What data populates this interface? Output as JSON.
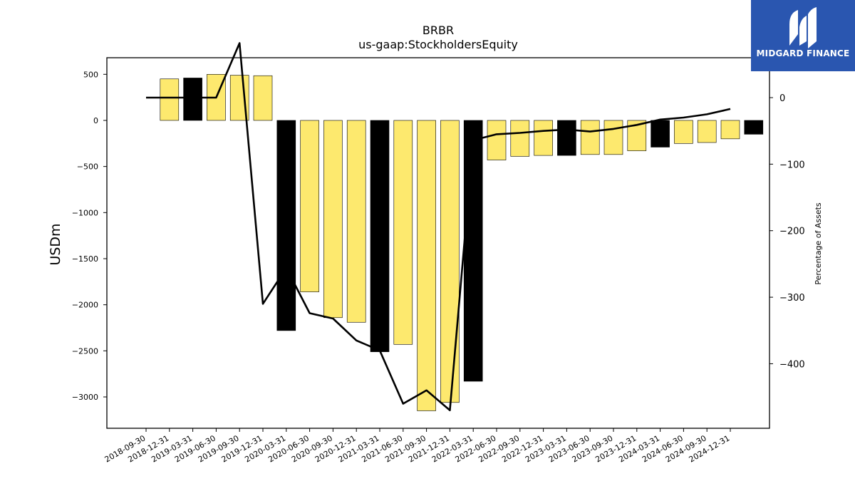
{
  "logo": {
    "text": "MIDGARD FINANCE"
  },
  "chart_data": {
    "type": "bar",
    "title": "BRBR",
    "subtitle": "us-gaap:StockholdersEquity",
    "ylabel": "USDm",
    "y2label": "Percentage of Assets",
    "ylim": [
      -3340,
      680
    ],
    "y2lim": [
      -497,
      60
    ],
    "yticks": [
      500,
      0,
      -500,
      -1000,
      -1500,
      -2000,
      -2500,
      -3000
    ],
    "y2ticks": [
      0,
      -100,
      -200,
      -300,
      -400
    ],
    "categories": [
      "2018-09-30",
      "2018-12-31",
      "2019-03-31",
      "2019-06-30",
      "2019-09-30",
      "2019-12-31",
      "2020-03-31",
      "2020-06-30",
      "2020-09-30",
      "2020-12-31",
      "2021-03-31",
      "2021-06-30",
      "2021-09-30",
      "2021-12-31",
      "2022-03-31",
      "2022-06-30",
      "2022-09-30",
      "2022-12-31",
      "2023-03-31",
      "2023-06-30",
      "2023-09-30",
      "2023-12-31",
      "2024-03-31",
      "2024-06-30",
      "2024-09-30",
      "2024-12-31"
    ],
    "bar_start_index": 1,
    "values": [
      450,
      460,
      500,
      490,
      485,
      -2280,
      -1860,
      -2140,
      -2190,
      -2510,
      -2430,
      -3150,
      -3060,
      -2830,
      -430,
      -390,
      -380,
      -380,
      -370,
      -370,
      -330,
      -290,
      -250,
      -240,
      -200,
      -150
    ],
    "highlight": [
      false,
      true,
      false,
      false,
      false,
      true,
      false,
      false,
      false,
      true,
      false,
      false,
      false,
      true,
      false,
      false,
      false,
      true,
      false,
      false,
      false,
      true,
      false,
      false,
      false,
      true
    ],
    "series": [
      {
        "name": "Percentage of Assets",
        "axis": "right",
        "values": [
          0,
          0,
          0,
          0,
          82,
          -310,
          -256,
          -324,
          -332,
          -365,
          -380,
          -460,
          -440,
          -470,
          -64,
          -55,
          -53,
          -50,
          -48,
          -51,
          -47,
          -41,
          -33,
          -30,
          -25,
          -17
        ]
      }
    ],
    "colors": {
      "bar": "#fde96e",
      "highlight": "#000000",
      "line": "#000000"
    },
    "grid": false
  }
}
